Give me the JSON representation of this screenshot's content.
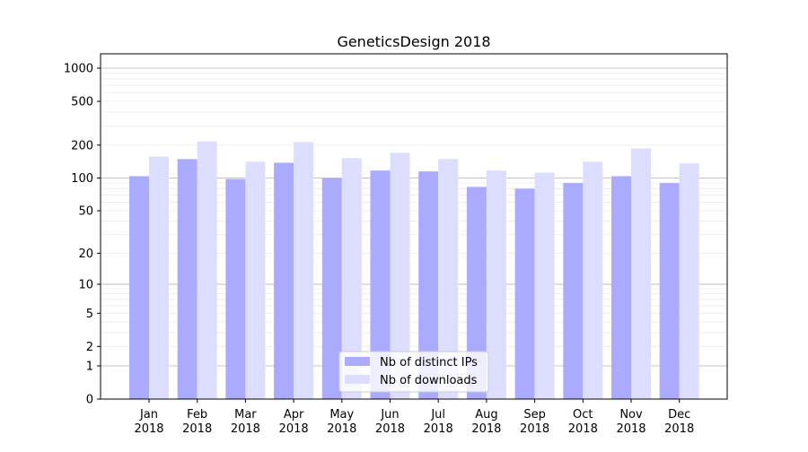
{
  "chart_data": {
    "type": "bar",
    "title": "GeneticsDesign 2018",
    "xlabel": "",
    "ylabel": "",
    "yscale": "log(1+y)",
    "ylim": [
      0,
      1350
    ],
    "yticks": [
      0,
      1,
      2,
      5,
      10,
      20,
      50,
      100,
      200,
      500,
      1000
    ],
    "grid": true,
    "legend_position": "bottom-center",
    "categories": [
      "Jan\n2018",
      "Feb\n2018",
      "Mar\n2018",
      "Apr\n2018",
      "May\n2018",
      "Jun\n2018",
      "Jul\n2018",
      "Aug\n2018",
      "Sep\n2018",
      "Oct\n2018",
      "Nov\n2018",
      "Dec\n2018"
    ],
    "series": [
      {
        "name": "Nb of distinct IPs",
        "color": "#aaaaff",
        "values": [
          104,
          149,
          98,
          138,
          100,
          117,
          115,
          83,
          80,
          90,
          104,
          90
        ]
      },
      {
        "name": "Nb of downloads",
        "color": "#ddddff",
        "values": [
          157,
          216,
          141,
          213,
          152,
          170,
          149,
          117,
          112,
          141,
          186,
          136
        ]
      }
    ]
  }
}
